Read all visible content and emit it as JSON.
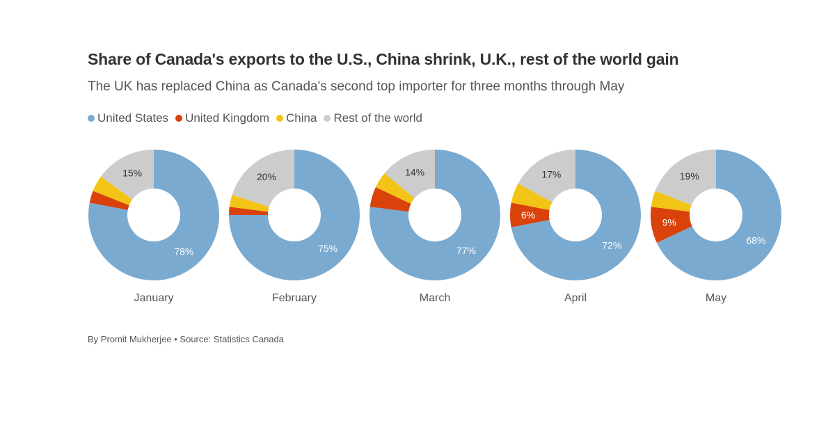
{
  "colors": {
    "United States": "#7aaad0",
    "United Kingdom": "#d9420b",
    "China": "#f2c416",
    "Rest of the world": "#cccccc"
  },
  "footer": "By Promit Mukherjee • Source: Statistics Canada",
  "chart_data": {
    "type": "pie",
    "title": "Share of Canada's exports to the U.S., China shrink, U.K., rest of the world gain",
    "subtitle": "The UK has replaced China as Canada's second top importer for three months through May",
    "legend": [
      "United States",
      "United Kingdom",
      "China",
      "Rest of the world"
    ],
    "legend_position": "top-left",
    "order": [
      "United States",
      "United Kingdom",
      "China",
      "Rest of the world"
    ],
    "charts": [
      {
        "month": "January",
        "values": {
          "United States": 78,
          "United Kingdom": 3,
          "China": 4,
          "Rest of the world": 15
        },
        "labels": {
          "United States": "78%",
          "Rest of the world": "15%"
        }
      },
      {
        "month": "February",
        "values": {
          "United States": 75,
          "United Kingdom": 2,
          "China": 3,
          "Rest of the world": 20
        },
        "labels": {
          "United States": "75%",
          "Rest of the world": "20%"
        }
      },
      {
        "month": "March",
        "values": {
          "United States": 77,
          "United Kingdom": 5,
          "China": 4,
          "Rest of the world": 14
        },
        "labels": {
          "United States": "77%",
          "Rest of the world": "14%"
        }
      },
      {
        "month": "April",
        "values": {
          "United States": 72,
          "United Kingdom": 6,
          "China": 5,
          "Rest of the world": 17
        },
        "labels": {
          "United States": "72%",
          "United Kingdom": "6%",
          "Rest of the world": "17%"
        }
      },
      {
        "month": "May",
        "values": {
          "United States": 68,
          "United Kingdom": 9,
          "China": 4,
          "Rest of the world": 19
        },
        "labels": {
          "United States": "68%",
          "United Kingdom": "9%",
          "Rest of the world": "19%"
        }
      }
    ]
  }
}
